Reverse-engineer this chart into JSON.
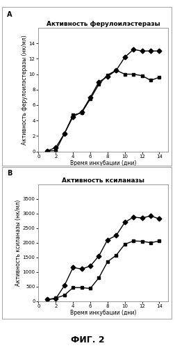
{
  "panel_A": {
    "title": "Активность ферулоилэстеразы",
    "ylabel": "Активность ферулоилэстеразы (нк/мл)",
    "xlabel": "Время инкубации (дни)",
    "label": "A",
    "ylim": [
      0,
      16
    ],
    "yticks": [
      0,
      2,
      4,
      6,
      8,
      10,
      12,
      14
    ],
    "xlim": [
      0,
      15
    ],
    "xticks": [
      0,
      2,
      4,
      6,
      8,
      10,
      12,
      14
    ],
    "series1_x": [
      1,
      2,
      3,
      4,
      5,
      6,
      7,
      8,
      9,
      10,
      11,
      12,
      13,
      14
    ],
    "series1_y": [
      0.05,
      0.1,
      2.3,
      4.7,
      5.0,
      6.8,
      8.7,
      9.9,
      10.5,
      10.0,
      10.0,
      9.8,
      9.2,
      9.6
    ],
    "series2_x": [
      1,
      2,
      3,
      4,
      5,
      6,
      7,
      8,
      9,
      10,
      11,
      12,
      13,
      14
    ],
    "series2_y": [
      0.05,
      0.5,
      2.3,
      4.5,
      5.1,
      7.0,
      9.0,
      9.7,
      10.5,
      12.2,
      13.2,
      13.0,
      13.0,
      13.0
    ]
  },
  "panel_B": {
    "title": "Активность ксиланазы",
    "ylabel": "Активность ксиланазы (нк/мл)",
    "xlabel": "Время инкубации (дни)",
    "label": "B",
    "ylim": [
      0,
      4000
    ],
    "yticks": [
      0,
      500,
      1000,
      1500,
      2000,
      2500,
      3000,
      3500
    ],
    "xlim": [
      0,
      15
    ],
    "xticks": [
      0,
      2,
      4,
      6,
      8,
      10,
      12,
      14
    ],
    "series1_x": [
      1,
      2,
      3,
      4,
      5,
      6,
      7,
      8,
      9,
      10,
      11,
      12,
      13,
      14
    ],
    "series1_y": [
      50,
      100,
      200,
      460,
      460,
      430,
      800,
      1350,
      1570,
      1950,
      2060,
      2050,
      2000,
      2060
    ],
    "series2_x": [
      1,
      2,
      3,
      4,
      5,
      6,
      7,
      8,
      9,
      10,
      11,
      12,
      13,
      14
    ],
    "series2_y": [
      50,
      80,
      530,
      1150,
      1100,
      1200,
      1550,
      2100,
      2250,
      2700,
      2880,
      2850,
      2920,
      2820
    ]
  },
  "fig_label": "ФИГ. 2",
  "background_color": "#ffffff",
  "line_color": "#000000",
  "marker_square": "s",
  "marker_circle": "D",
  "linewidth": 1.0,
  "markersize": 3.5,
  "label_fontsize": 5.5,
  "title_fontsize": 6.5,
  "panel_label_fontsize": 7,
  "tick_fontsize": 5.0,
  "fig_label_fontsize": 9,
  "box_color": "#cccccc"
}
